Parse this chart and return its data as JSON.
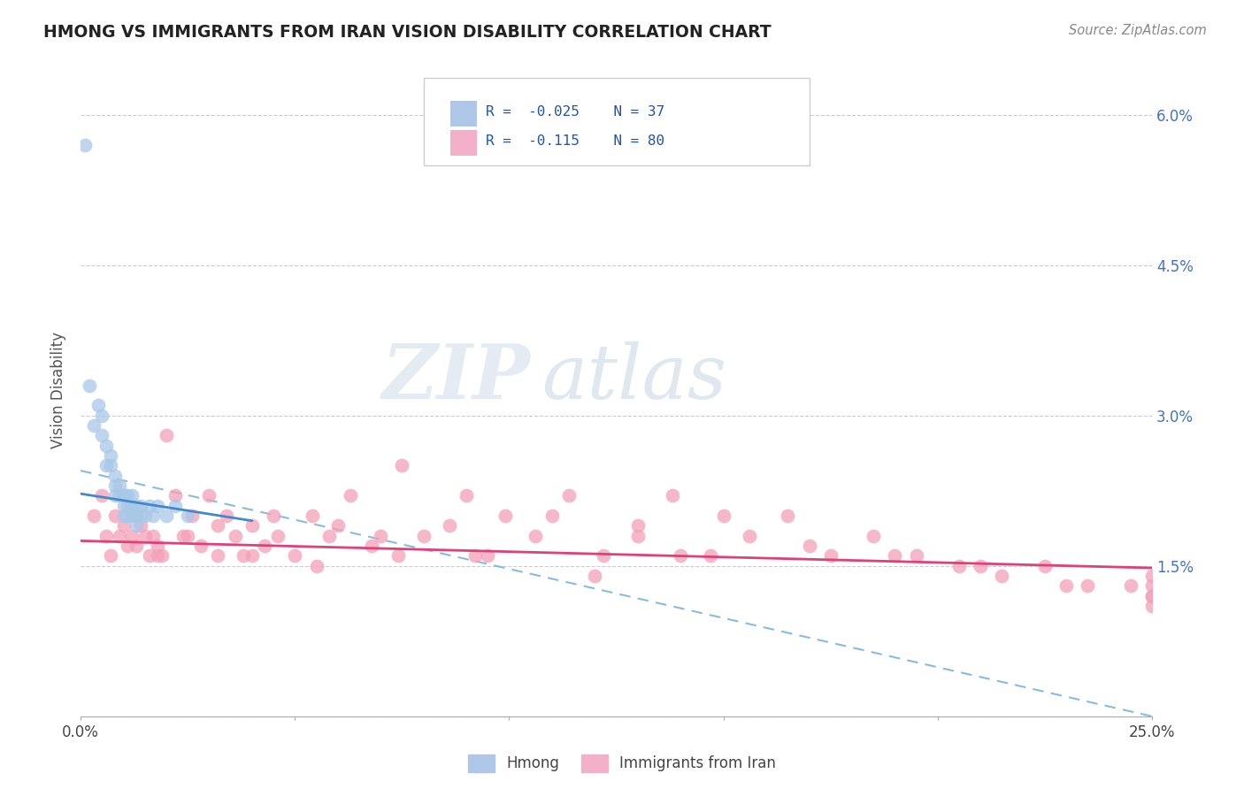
{
  "title": "HMONG VS IMMIGRANTS FROM IRAN VISION DISABILITY CORRELATION CHART",
  "source": "Source: ZipAtlas.com",
  "ylabel": "Vision Disability",
  "xlim": [
    0.0,
    0.25
  ],
  "ylim": [
    0.0,
    0.065
  ],
  "xticks": [
    0.0,
    0.05,
    0.1,
    0.15,
    0.2,
    0.25
  ],
  "yticks": [
    0.0,
    0.015,
    0.03,
    0.045,
    0.06
  ],
  "blue_color": "#a8c8e8",
  "pink_color": "#f4a0b8",
  "blue_line_color": "#4488cc",
  "pink_line_color": "#e0407a",
  "dash_line_color": "#88bbdd",
  "watermark_zip": "ZIP",
  "watermark_atlas": "atlas",
  "hmong_x": [
    0.001,
    0.002,
    0.003,
    0.004,
    0.005,
    0.005,
    0.006,
    0.006,
    0.007,
    0.007,
    0.008,
    0.008,
    0.008,
    0.009,
    0.009,
    0.01,
    0.01,
    0.01,
    0.01,
    0.011,
    0.011,
    0.011,
    0.012,
    0.012,
    0.012,
    0.013,
    0.013,
    0.013,
    0.014,
    0.014,
    0.015,
    0.016,
    0.017,
    0.018,
    0.02,
    0.022,
    0.025
  ],
  "hmong_y": [
    0.057,
    0.033,
    0.029,
    0.031,
    0.03,
    0.028,
    0.027,
    0.025,
    0.026,
    0.025,
    0.024,
    0.023,
    0.022,
    0.023,
    0.022,
    0.022,
    0.022,
    0.021,
    0.02,
    0.022,
    0.021,
    0.02,
    0.022,
    0.021,
    0.02,
    0.021,
    0.02,
    0.019,
    0.021,
    0.02,
    0.02,
    0.021,
    0.02,
    0.021,
    0.02,
    0.021,
    0.02
  ],
  "iran_x": [
    0.003,
    0.005,
    0.006,
    0.007,
    0.008,
    0.009,
    0.01,
    0.011,
    0.012,
    0.013,
    0.014,
    0.015,
    0.016,
    0.017,
    0.018,
    0.019,
    0.02,
    0.022,
    0.024,
    0.026,
    0.028,
    0.03,
    0.032,
    0.034,
    0.036,
    0.038,
    0.04,
    0.043,
    0.046,
    0.05,
    0.054,
    0.058,
    0.063,
    0.068,
    0.074,
    0.08,
    0.086,
    0.092,
    0.099,
    0.106,
    0.114,
    0.122,
    0.13,
    0.138,
    0.147,
    0.156,
    0.165,
    0.175,
    0.185,
    0.195,
    0.205,
    0.215,
    0.225,
    0.235,
    0.245,
    0.25,
    0.25,
    0.25,
    0.25,
    0.25,
    0.018,
    0.025,
    0.032,
    0.045,
    0.06,
    0.075,
    0.09,
    0.11,
    0.13,
    0.15,
    0.17,
    0.19,
    0.21,
    0.23,
    0.04,
    0.055,
    0.07,
    0.095,
    0.12,
    0.14
  ],
  "iran_y": [
    0.02,
    0.022,
    0.018,
    0.016,
    0.02,
    0.018,
    0.019,
    0.017,
    0.018,
    0.017,
    0.019,
    0.018,
    0.016,
    0.018,
    0.017,
    0.016,
    0.028,
    0.022,
    0.018,
    0.02,
    0.017,
    0.022,
    0.019,
    0.02,
    0.018,
    0.016,
    0.019,
    0.017,
    0.018,
    0.016,
    0.02,
    0.018,
    0.022,
    0.017,
    0.016,
    0.018,
    0.019,
    0.016,
    0.02,
    0.018,
    0.022,
    0.016,
    0.019,
    0.022,
    0.016,
    0.018,
    0.02,
    0.016,
    0.018,
    0.016,
    0.015,
    0.014,
    0.015,
    0.013,
    0.013,
    0.014,
    0.012,
    0.013,
    0.011,
    0.012,
    0.016,
    0.018,
    0.016,
    0.02,
    0.019,
    0.025,
    0.022,
    0.02,
    0.018,
    0.02,
    0.017,
    0.016,
    0.015,
    0.013,
    0.016,
    0.015,
    0.018,
    0.016,
    0.014,
    0.016
  ],
  "hmong_trend_x": [
    0.0,
    0.04
  ],
  "hmong_trend_y": [
    0.0222,
    0.0195
  ],
  "iran_trend_x": [
    0.0,
    0.25
  ],
  "iran_trend_y": [
    0.0175,
    0.0148
  ],
  "dash_trend_x": [
    0.0,
    0.25
  ],
  "dash_trend_y": [
    0.0245,
    0.0
  ]
}
